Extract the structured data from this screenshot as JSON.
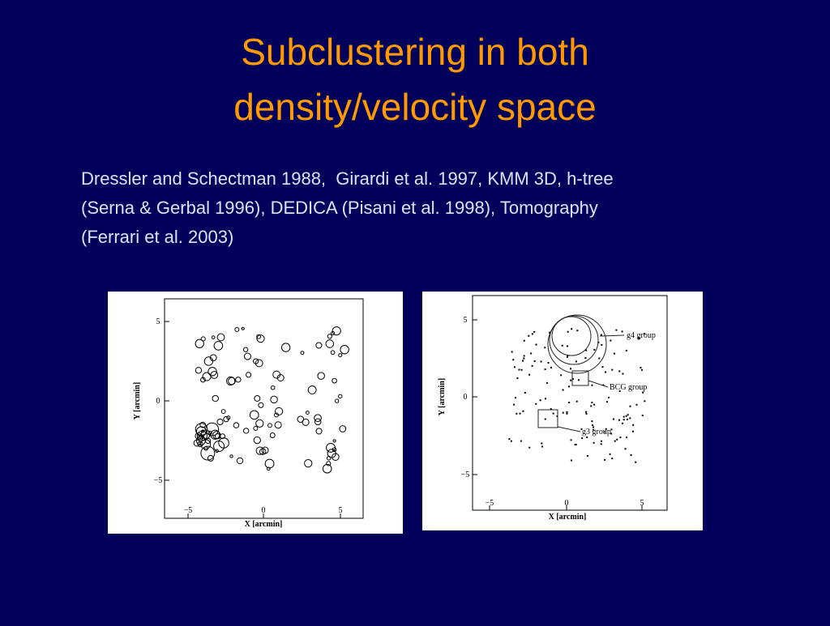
{
  "slide": {
    "title": [
      "Subclustering in both",
      "density/velocity space"
    ],
    "body": [
      "Dressler and Schectman 1988,  Girardi et al. 1997, KMM 3D, h-tree",
      "(Serna & Gerbal 1996), DEDICA (Pisani et al. 1998), Tomography",
      "(Ferrari et al. 2003)"
    ],
    "figures": [
      {
        "xlabel": "X [arcmin]",
        "ylabel": "Y [arcmin]",
        "xticks": [
          "−5",
          "0",
          "5"
        ],
        "yticks": [
          "5",
          "0",
          "−5"
        ]
      },
      {
        "xlabel": "X [arcmin]",
        "ylabel": "Y [arcmin]",
        "xticks": [
          "−5",
          "0",
          "5"
        ],
        "yticks": [
          "5",
          "0",
          "−5"
        ],
        "annotations": [
          "g4 group",
          "BCG group",
          "g3 group"
        ]
      }
    ]
  }
}
